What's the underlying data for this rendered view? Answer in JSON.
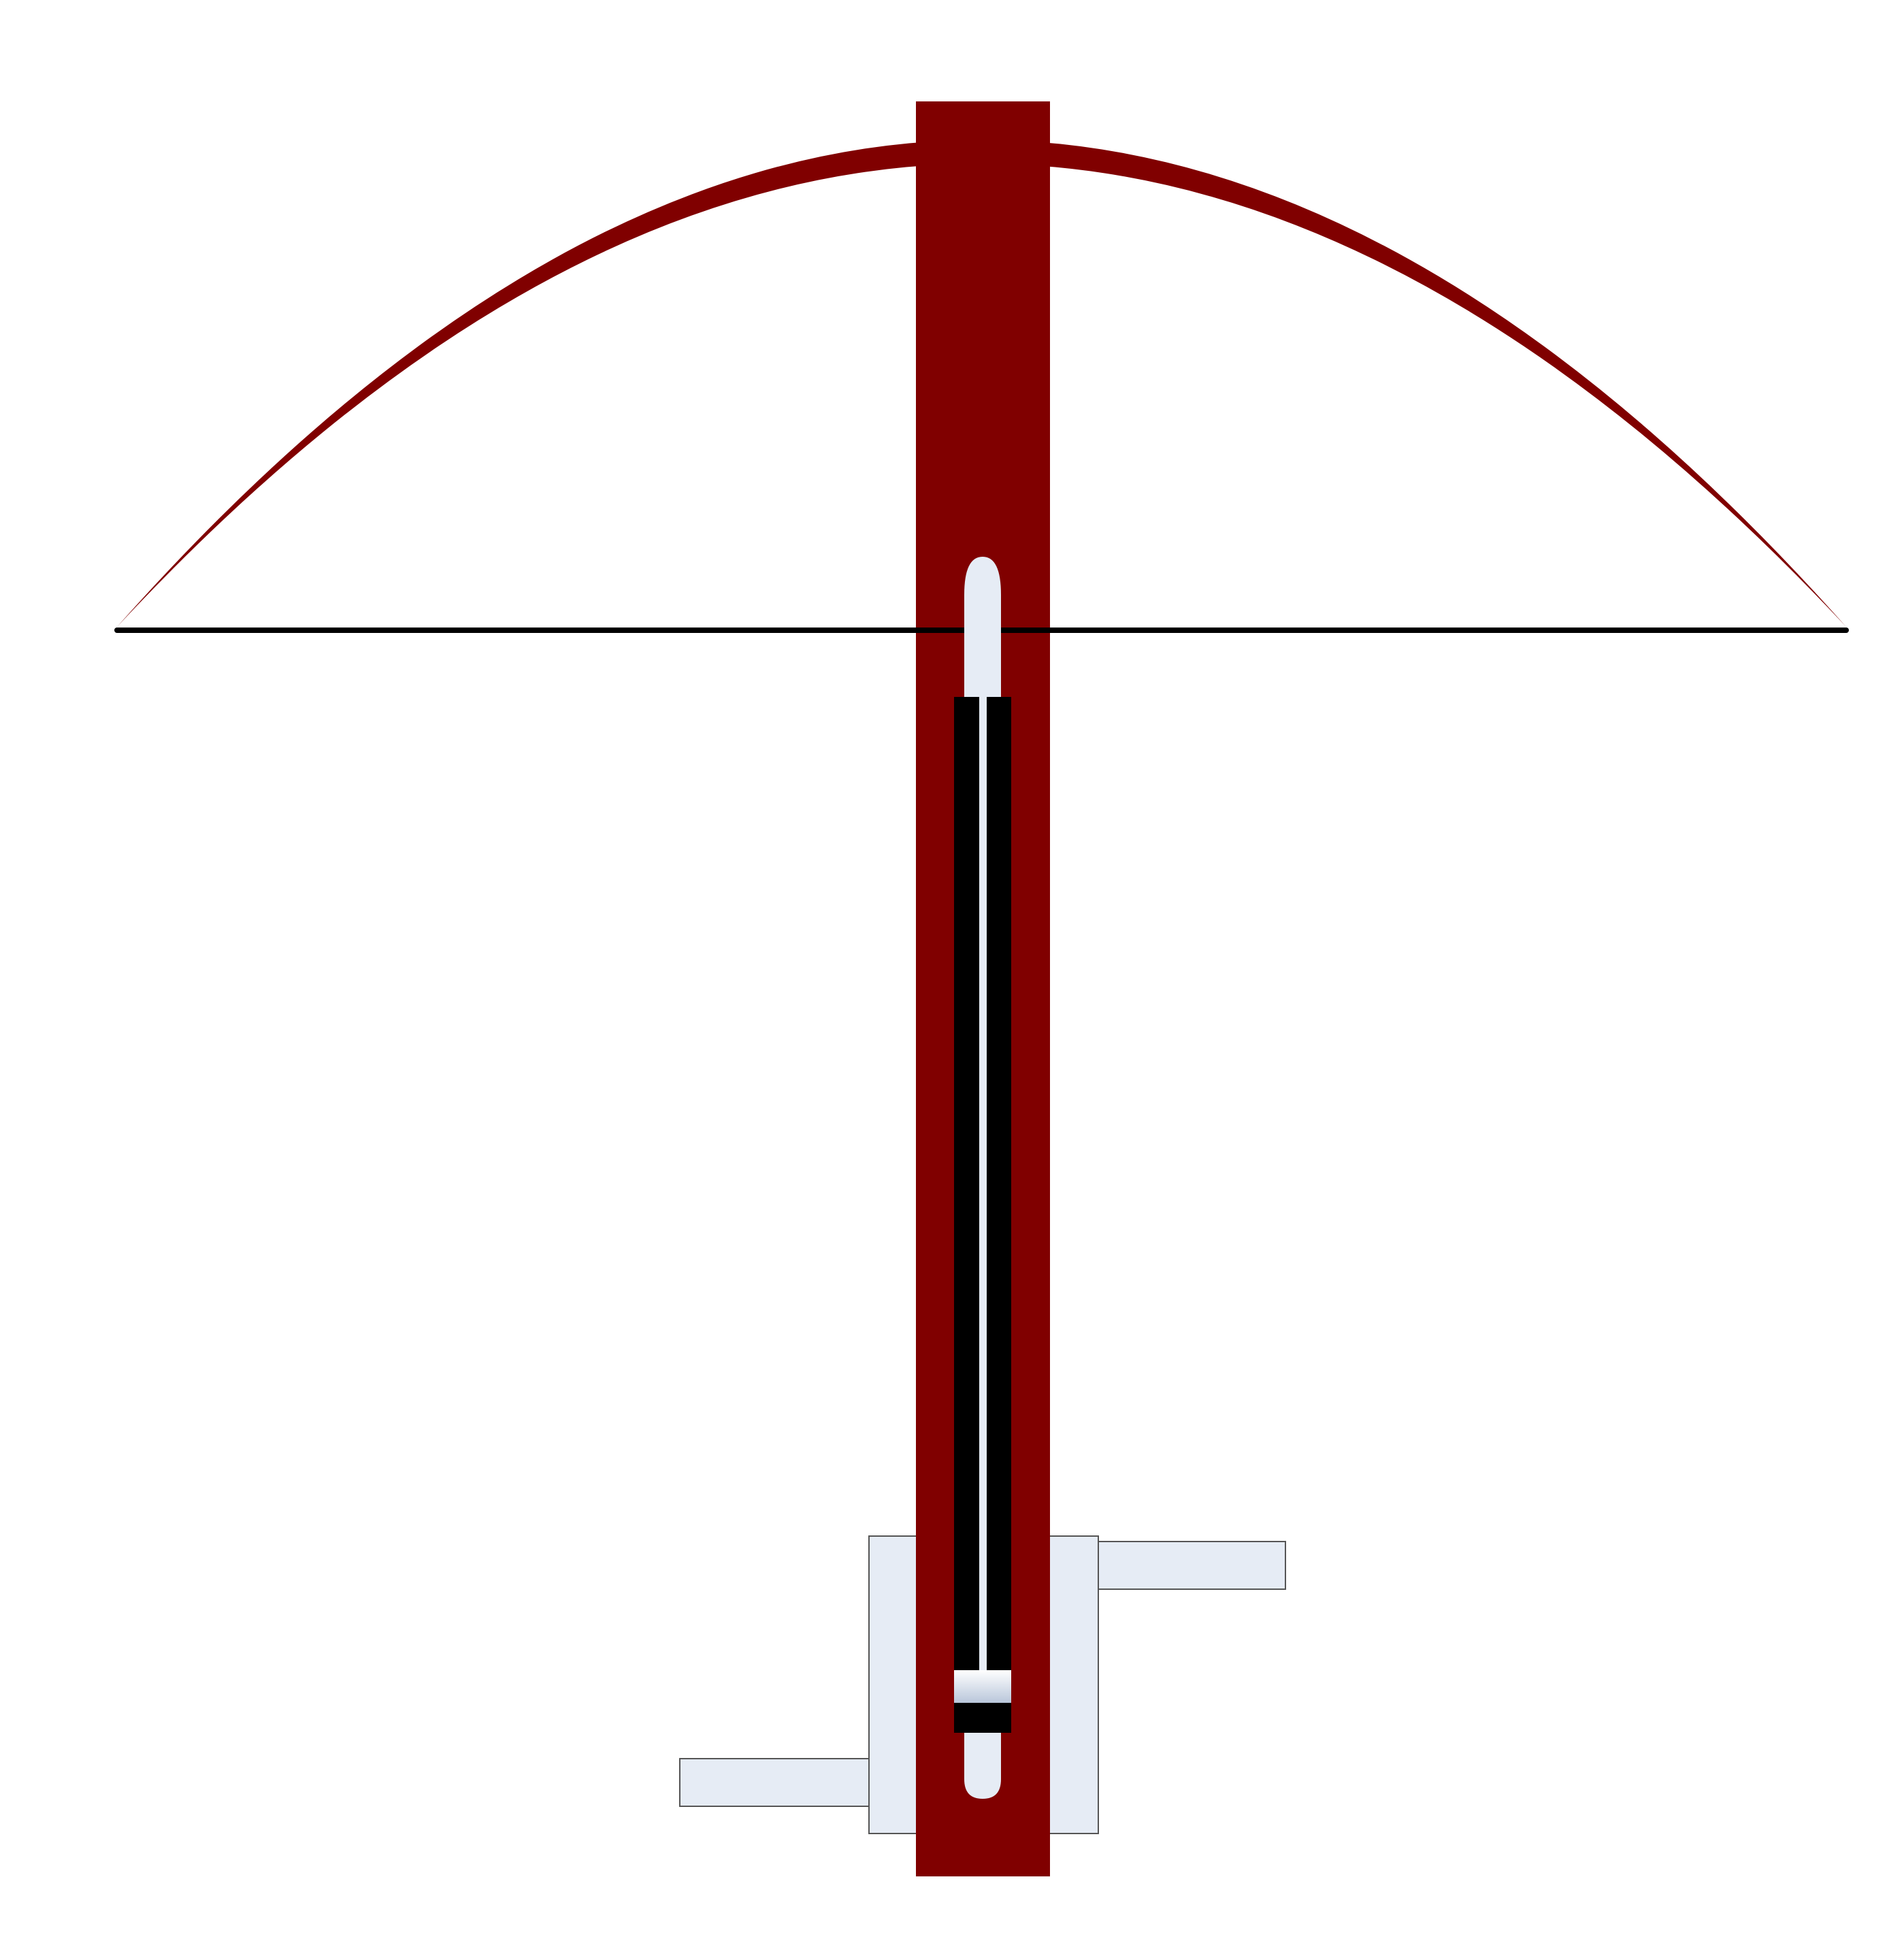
{
  "diagram": {
    "subject": "",
    "colors": {
      "background": "#ffffff",
      "stock": "#800000",
      "bow_limb": "#800000",
      "bowstring": "#000000",
      "metal_light": "#e6ecf5",
      "groove": "#000000",
      "outline": "#555555"
    },
    "parts": [
      "bow-limb",
      "bowstring",
      "stock",
      "bolt-slot",
      "groove-channel",
      "trigger-block",
      "crank-handle-right",
      "crank-handle-left",
      "slider-nut"
    ]
  }
}
